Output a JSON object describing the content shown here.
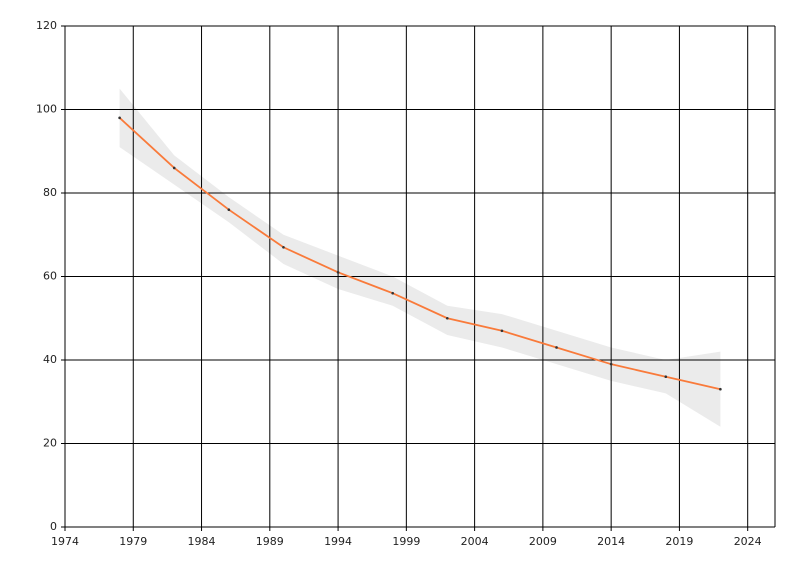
{
  "chart_data": {
    "type": "line",
    "x": [
      1978,
      1982,
      1986,
      1990,
      1994,
      1998,
      2002,
      2006,
      2010,
      2014,
      2018,
      2022
    ],
    "series": [
      {
        "color": "#f97a3a",
        "values": [
          98,
          86,
          76,
          67,
          61,
          56,
          50,
          47,
          43,
          39,
          36,
          33
        ],
        "band_lower": [
          91,
          82,
          73,
          63,
          57,
          53,
          46,
          43,
          39,
          35,
          32,
          24
        ],
        "band_upper": [
          105,
          89,
          79,
          70,
          65,
          60,
          53,
          51,
          47,
          43,
          40,
          42
        ],
        "band_color": "#ebebeb"
      }
    ],
    "xlim": [
      1974,
      2026
    ],
    "xticks": [
      1974,
      1979,
      1984,
      1989,
      1994,
      1999,
      2004,
      2009,
      2014,
      2019,
      2024
    ],
    "ylim": [
      0,
      120
    ],
    "yticks": [
      0,
      20,
      40,
      60,
      80,
      100,
      120
    ],
    "grid": true
  }
}
